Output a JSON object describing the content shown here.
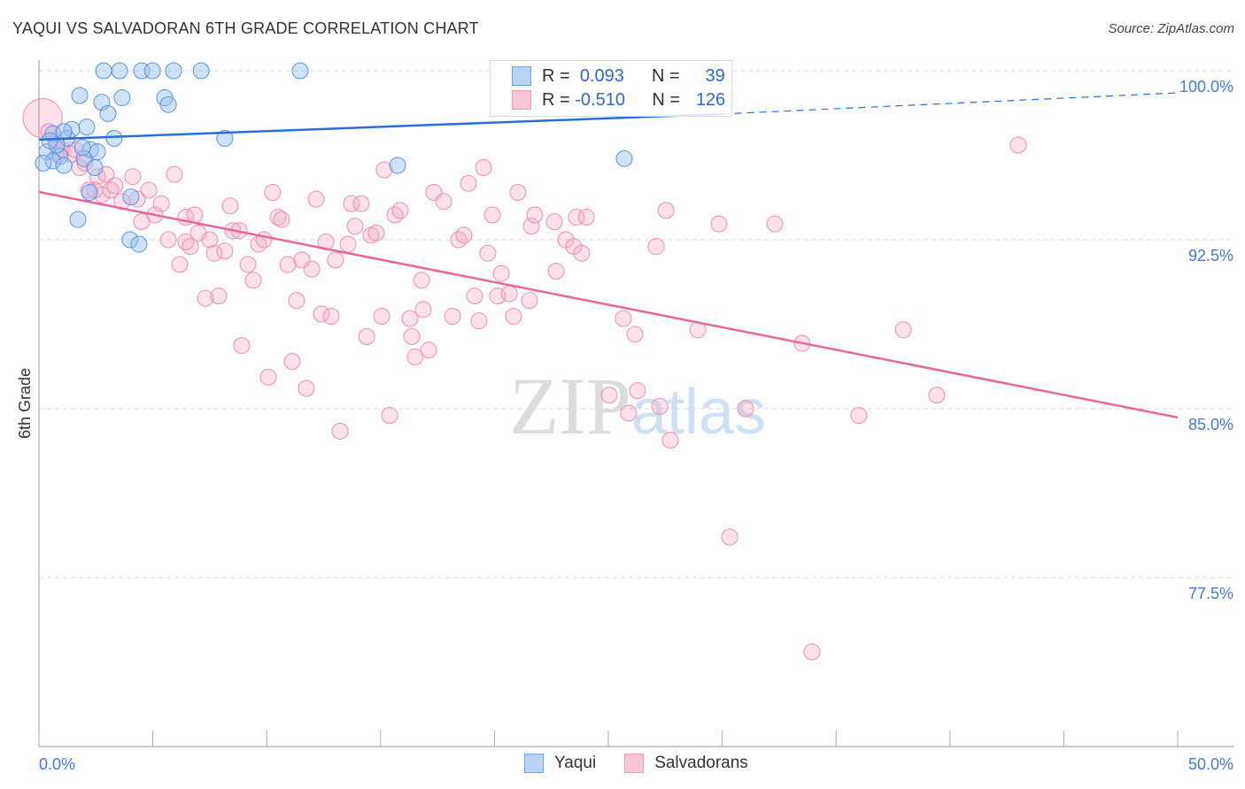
{
  "chart_data": {
    "type": "scatter",
    "title": "YAQUI VS SALVADORAN 6TH GRADE CORRELATION CHART",
    "source": "Source: ZipAtlas.com",
    "xlabel": "",
    "ylabel": "6th Grade",
    "xlim": [
      0,
      52.4
    ],
    "ylim": [
      70,
      100.5
    ],
    "x_tick_labels": [
      "0.0%",
      "50.0%"
    ],
    "x_ticks": [
      0,
      5,
      10,
      15,
      20,
      25,
      30,
      35,
      40,
      45,
      50
    ],
    "y_ticks": [
      100,
      92.5,
      85,
      77.5
    ],
    "y_tick_labels": [
      "100.0%",
      "92.5%",
      "85.0%",
      "77.5%"
    ],
    "grid": true,
    "legend_position": "top-center",
    "legend": [
      {
        "name": "Yaqui",
        "r_label": "R =",
        "r": "0.093",
        "n_label": "N =",
        "n": "39"
      },
      {
        "name": "Salvadorans",
        "r_label": "R =",
        "r": "-0.510",
        "n_label": "N =",
        "n": "126"
      }
    ],
    "watermark": "ZIPatlas",
    "colors": {
      "Yaqui": "#6fa3e8",
      "Salvadorans": "#f29bb8",
      "Yaqui_line": "#2a6fd6",
      "Salvadorans_line": "#e8669a"
    },
    "series": [
      {
        "name": "Yaqui",
        "trend": {
          "x": [
            0,
            30,
            50
          ],
          "y": [
            96.94,
            98.08,
            99.02
          ],
          "solid_until": 30
        },
        "points": [
          [
            2.84,
            100.0
          ],
          [
            3.54,
            100.0
          ],
          [
            4.51,
            100.0
          ],
          [
            4.98,
            100.0
          ],
          [
            5.91,
            100.0
          ],
          [
            7.12,
            100.0
          ],
          [
            11.47,
            100.0
          ],
          [
            1.79,
            98.9
          ],
          [
            2.76,
            98.6
          ],
          [
            3.65,
            98.8
          ],
          [
            5.52,
            98.8
          ],
          [
            5.68,
            98.5
          ],
          [
            3.03,
            98.1
          ],
          [
            2.1,
            97.5
          ],
          [
            1.44,
            97.4
          ],
          [
            0.62,
            97.2
          ],
          [
            3.3,
            97.0
          ],
          [
            8.16,
            97.0
          ],
          [
            1.24,
            97.0
          ],
          [
            2.26,
            96.5
          ],
          [
            2.57,
            96.4
          ],
          [
            0.35,
            96.4
          ],
          [
            0.93,
            96.2
          ],
          [
            0.62,
            96.0
          ],
          [
            0.19,
            95.9
          ],
          [
            1.09,
            95.8
          ],
          [
            1.98,
            96.1
          ],
          [
            2.45,
            95.7
          ],
          [
            15.75,
            95.8
          ],
          [
            25.7,
            96.1
          ],
          [
            2.22,
            94.6
          ],
          [
            4.04,
            94.4
          ],
          [
            1.71,
            93.4
          ],
          [
            4.0,
            92.5
          ],
          [
            4.39,
            92.3
          ],
          [
            0.78,
            96.7
          ],
          [
            0.47,
            96.9
          ],
          [
            1.91,
            96.6
          ],
          [
            1.09,
            97.3
          ]
        ]
      },
      {
        "name": "Salvadorans",
        "trend": {
          "x": [
            0,
            50
          ],
          "y": [
            94.62,
            84.61
          ]
        },
        "big_point": [
          0.16,
          97.9
        ],
        "points": [
          [
            0.43,
            97.3
          ],
          [
            0.74,
            96.9
          ],
          [
            1.01,
            96.5
          ],
          [
            1.4,
            96.3
          ],
          [
            1.79,
            95.7
          ],
          [
            2.18,
            94.7
          ],
          [
            2.57,
            95.3
          ],
          [
            2.76,
            94.5
          ],
          [
            3.15,
            94.7
          ],
          [
            3.34,
            94.9
          ],
          [
            3.65,
            94.2
          ],
          [
            4.12,
            95.3
          ],
          [
            4.32,
            94.3
          ],
          [
            4.51,
            93.3
          ],
          [
            4.82,
            94.7
          ],
          [
            5.09,
            93.6
          ],
          [
            5.37,
            94.1
          ],
          [
            5.68,
            92.5
          ],
          [
            5.95,
            95.4
          ],
          [
            6.18,
            91.4
          ],
          [
            6.45,
            93.5
          ],
          [
            6.65,
            92.2
          ],
          [
            6.84,
            93.6
          ],
          [
            7.0,
            92.8
          ],
          [
            7.31,
            89.9
          ],
          [
            7.5,
            92.5
          ],
          [
            7.7,
            91.9
          ],
          [
            7.89,
            90.0
          ],
          [
            8.16,
            92.0
          ],
          [
            8.4,
            94.0
          ],
          [
            8.51,
            92.9
          ],
          [
            8.79,
            92.9
          ],
          [
            8.9,
            87.8
          ],
          [
            9.18,
            91.4
          ],
          [
            9.41,
            90.7
          ],
          [
            9.64,
            92.3
          ],
          [
            9.88,
            92.5
          ],
          [
            10.07,
            86.4
          ],
          [
            10.26,
            94.6
          ],
          [
            10.5,
            93.5
          ],
          [
            10.65,
            93.4
          ],
          [
            10.93,
            91.4
          ],
          [
            11.12,
            87.1
          ],
          [
            11.31,
            89.8
          ],
          [
            11.55,
            91.6
          ],
          [
            11.74,
            85.9
          ],
          [
            11.98,
            91.2
          ],
          [
            12.17,
            94.3
          ],
          [
            12.4,
            89.2
          ],
          [
            12.6,
            92.4
          ],
          [
            12.83,
            89.1
          ],
          [
            13.02,
            91.6
          ],
          [
            13.22,
            84.0
          ],
          [
            13.57,
            92.3
          ],
          [
            13.72,
            94.1
          ],
          [
            13.88,
            93.1
          ],
          [
            14.15,
            94.1
          ],
          [
            14.39,
            88.2
          ],
          [
            14.58,
            92.7
          ],
          [
            14.81,
            92.8
          ],
          [
            15.05,
            89.1
          ],
          [
            15.16,
            95.6
          ],
          [
            15.4,
            84.7
          ],
          [
            15.63,
            93.6
          ],
          [
            15.86,
            93.8
          ],
          [
            16.29,
            89.0
          ],
          [
            16.52,
            87.3
          ],
          [
            16.8,
            90.7
          ],
          [
            16.87,
            89.4
          ],
          [
            17.11,
            87.6
          ],
          [
            17.34,
            94.6
          ],
          [
            17.77,
            94.2
          ],
          [
            18.16,
            89.1
          ],
          [
            18.43,
            92.5
          ],
          [
            18.66,
            92.7
          ],
          [
            18.86,
            95.0
          ],
          [
            19.13,
            90.0
          ],
          [
            19.32,
            88.9
          ],
          [
            19.52,
            95.7
          ],
          [
            19.71,
            91.9
          ],
          [
            19.91,
            93.6
          ],
          [
            20.14,
            90.0
          ],
          [
            20.3,
            91.0
          ],
          [
            20.65,
            90.1
          ],
          [
            20.84,
            89.1
          ],
          [
            21.03,
            94.6
          ],
          [
            21.54,
            89.8
          ],
          [
            21.62,
            93.1
          ],
          [
            21.77,
            93.6
          ],
          [
            22.63,
            93.3
          ],
          [
            22.71,
            91.1
          ],
          [
            23.13,
            92.5
          ],
          [
            23.48,
            92.2
          ],
          [
            23.6,
            93.5
          ],
          [
            23.83,
            91.9
          ],
          [
            24.03,
            93.5
          ],
          [
            25.04,
            85.6
          ],
          [
            25.66,
            89.0
          ],
          [
            25.89,
            84.8
          ],
          [
            26.17,
            88.3
          ],
          [
            26.28,
            85.8
          ],
          [
            27.26,
            85.1
          ],
          [
            27.53,
            93.8
          ],
          [
            27.72,
            83.6
          ],
          [
            27.1,
            92.2
          ],
          [
            28.93,
            88.5
          ],
          [
            29.86,
            93.2
          ],
          [
            30.33,
            79.3
          ],
          [
            31.03,
            85.0
          ],
          [
            32.31,
            93.2
          ],
          [
            33.51,
            87.9
          ],
          [
            33.94,
            74.2
          ],
          [
            36.0,
            84.7
          ],
          [
            37.95,
            88.5
          ],
          [
            39.42,
            85.6
          ],
          [
            43.0,
            96.7
          ],
          [
            2.02,
            95.9
          ],
          [
            1.59,
            96.5
          ],
          [
            2.95,
            95.4
          ],
          [
            2.45,
            94.7
          ],
          [
            0.86,
            96.3
          ],
          [
            6.45,
            92.4
          ],
          [
            16.37,
            88.2
          ]
        ]
      }
    ]
  }
}
